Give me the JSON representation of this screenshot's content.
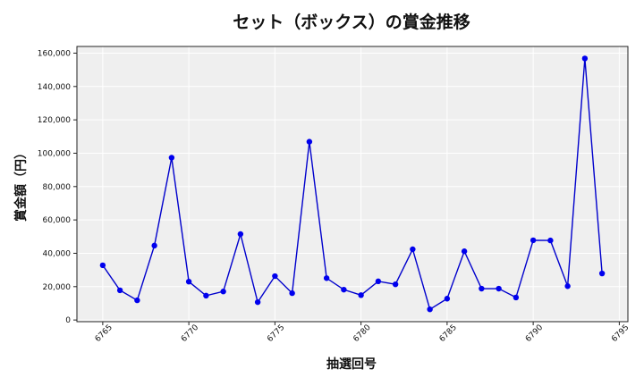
{
  "chart_data": {
    "type": "line",
    "title": "セット（ボックス）の賞金推移",
    "xlabel": "抽選回号",
    "ylabel": "賞金額（円）",
    "xlim": [
      6763.5,
      6795.5
    ],
    "ylim": [
      -1000,
      164000
    ],
    "xticks": [
      6765,
      6770,
      6775,
      6780,
      6785,
      6790,
      6795
    ],
    "xtick_labels": [
      "6765",
      "6770",
      "6775",
      "6780",
      "6785",
      "6790",
      "6795"
    ],
    "yticks": [
      0,
      20000,
      40000,
      60000,
      80000,
      100000,
      120000,
      140000,
      160000
    ],
    "ytick_labels": [
      "0",
      "20,000",
      "40,000",
      "60,000",
      "80,000",
      "100,000",
      "120,000",
      "140,000",
      "160,000"
    ],
    "grid": true,
    "colors": {
      "line": "#0000cc",
      "marker": "#0000ee",
      "plot_bg": "#efefef",
      "grid": "#ffffff"
    },
    "series": [
      {
        "x": [
          6765,
          6766,
          6767,
          6768,
          6769,
          6770,
          6771,
          6772,
          6773,
          6774,
          6775,
          6776,
          6777,
          6778,
          6779,
          6780,
          6781,
          6782,
          6783,
          6784,
          6785,
          6786,
          6787,
          6788,
          6789,
          6790,
          6791,
          6792,
          6793,
          6794
        ],
        "values": [
          32800,
          17800,
          11800,
          44600,
          97300,
          23000,
          14600,
          17100,
          51500,
          10700,
          26300,
          16100,
          106900,
          25100,
          18200,
          14900,
          23200,
          21400,
          42400,
          6400,
          12800,
          41200,
          18800,
          18800,
          13500,
          47800,
          47700,
          20300,
          156800,
          27900
        ]
      }
    ]
  }
}
